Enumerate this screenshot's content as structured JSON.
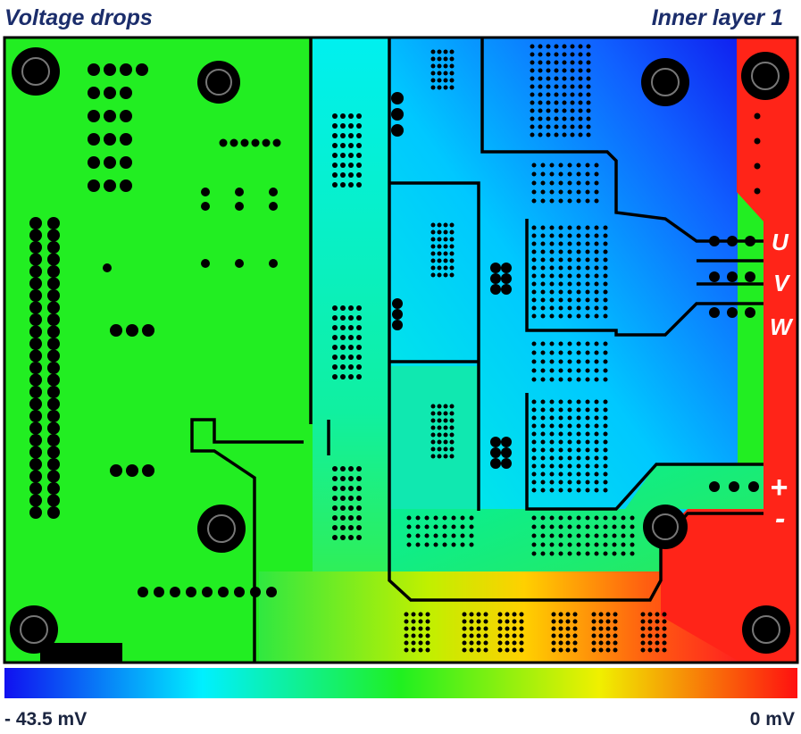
{
  "header": {
    "title": "Voltage drops",
    "layer": "Inner layer 1"
  },
  "terminals": [
    "U",
    "V",
    "W",
    "+",
    "-"
  ],
  "scale": {
    "min_label": "- 43.5 mV",
    "max_label": "0 mV"
  }
}
